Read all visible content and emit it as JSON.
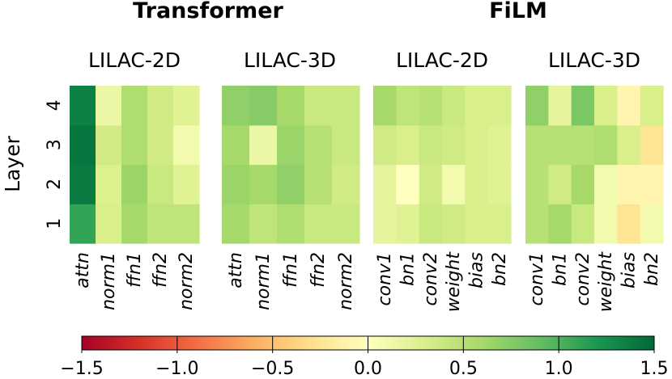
{
  "chart_data": {
    "type": "heatmap",
    "ylabel": "Layer",
    "layers": [
      "1",
      "2",
      "3",
      "4"
    ],
    "group_titles": [
      "Transformer",
      "FiLM"
    ],
    "colormap": {
      "name": "RdYlGn",
      "range": [
        -1.5,
        1.5
      ],
      "ticks": [
        "−1.5",
        "−1.0",
        "−0.5",
        "0.0",
        "0.5",
        "1.0",
        "1.5"
      ],
      "tick_values": [
        -1.5,
        -1.0,
        -0.5,
        0.0,
        0.5,
        1.0,
        1.5
      ]
    },
    "panels": [
      {
        "group": "Transformer",
        "title": "LILAC-2D",
        "columns": [
          "attn",
          "norm1",
          "ffn1",
          "ffn2",
          "norm2"
        ],
        "values_by_layer": {
          "4": [
            1.35,
            0.15,
            0.55,
            0.35,
            0.25
          ],
          "3": [
            1.42,
            0.35,
            0.55,
            0.35,
            0.1
          ],
          "2": [
            1.38,
            0.28,
            0.65,
            0.4,
            0.25
          ],
          "1": [
            1.1,
            0.3,
            0.6,
            0.45,
            0.45
          ]
        }
      },
      {
        "group": "Transformer",
        "title": "LILAC-3D",
        "columns": [
          "attn",
          "norm1",
          "ffn1",
          "ffn2",
          "norm2"
        ],
        "values_by_layer": {
          "4": [
            0.7,
            0.75,
            0.6,
            0.4,
            0.4
          ],
          "3": [
            0.6,
            0.15,
            0.65,
            0.5,
            0.4
          ],
          "2": [
            0.65,
            0.6,
            0.7,
            0.5,
            0.35
          ],
          "1": [
            0.6,
            0.45,
            0.55,
            0.4,
            0.4
          ]
        }
      },
      {
        "group": "FiLM",
        "title": "LILAC-2D",
        "columns": [
          "conv1",
          "bn1",
          "conv2",
          "weight",
          "bias",
          "bn2"
        ],
        "values_by_layer": {
          "4": [
            0.6,
            0.45,
            0.5,
            0.4,
            0.3,
            0.3
          ],
          "3": [
            0.35,
            0.3,
            0.4,
            0.35,
            0.3,
            0.25
          ],
          "2": [
            0.2,
            0.0,
            0.35,
            0.1,
            0.3,
            0.25
          ],
          "1": [
            0.2,
            0.25,
            0.4,
            0.35,
            0.3,
            0.3
          ]
        }
      },
      {
        "group": "FiLM",
        "title": "LILAC-3D",
        "columns": [
          "conv1",
          "bn1",
          "conv2",
          "weight",
          "bias",
          "bn2"
        ],
        "values_by_layer": {
          "4": [
            0.7,
            0.2,
            0.8,
            0.3,
            -0.1,
            0.3
          ],
          "3": [
            0.5,
            0.5,
            0.5,
            0.55,
            0.3,
            -0.25
          ],
          "2": [
            0.5,
            0.35,
            0.6,
            0.1,
            -0.1,
            -0.1
          ],
          "1": [
            0.5,
            0.6,
            0.4,
            0.1,
            -0.25,
            0.1
          ]
        }
      }
    ]
  }
}
